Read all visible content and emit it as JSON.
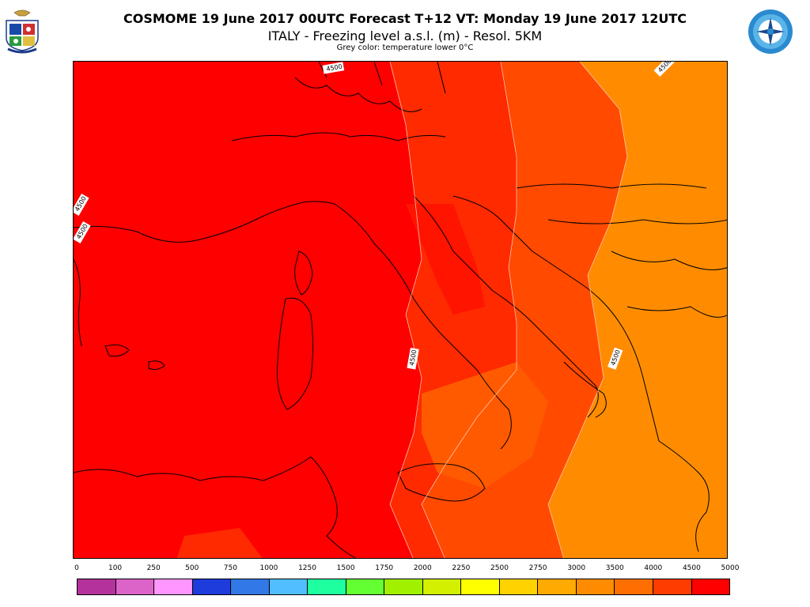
{
  "header": {
    "title": "COSMOME 19 June 2017 00UTC Forecast T+12 VT: Monday 19 June 2017 12UTC",
    "subtitle": "ITALY - Freezing level a.s.l. (m) - Resol. 5KM",
    "note": "Grey color: temperature lower 0°C"
  },
  "logos": {
    "left": "air-force-meteo-crest-icon",
    "right": "meteo-service-compass-icon"
  },
  "map": {
    "region": "Italy and Mediterranean",
    "zone_colors": {
      "deep_red": "#ff0000",
      "red_orange": "#ff3300",
      "orange_red": "#ff5500",
      "orange": "#ff8800"
    },
    "contour_labels": [
      {
        "text": "4500",
        "id": "label-north"
      },
      {
        "text": "4500",
        "id": "label-west-1"
      },
      {
        "text": "4500",
        "id": "label-west-2"
      },
      {
        "text": "4500",
        "id": "label-central"
      },
      {
        "text": "4500",
        "id": "label-east"
      },
      {
        "text": "4500",
        "id": "label-northeast"
      }
    ]
  },
  "legend": {
    "ticks": [
      "0",
      "100",
      "250",
      "500",
      "750",
      "1000",
      "1250",
      "1500",
      "1750",
      "2000",
      "2250",
      "2500",
      "2750",
      "3000",
      "3500",
      "4000",
      "4500",
      "5000"
    ],
    "colors": [
      "#b4329b",
      "#dc64c8",
      "#ff96ff",
      "#1e3cdc",
      "#3278e6",
      "#50beff",
      "#1effa0",
      "#64ff32",
      "#a0f000",
      "#d2f000",
      "#ffff00",
      "#ffd200",
      "#ffaa00",
      "#ff8c00",
      "#ff6e00",
      "#ff3c00",
      "#ff0000"
    ]
  }
}
